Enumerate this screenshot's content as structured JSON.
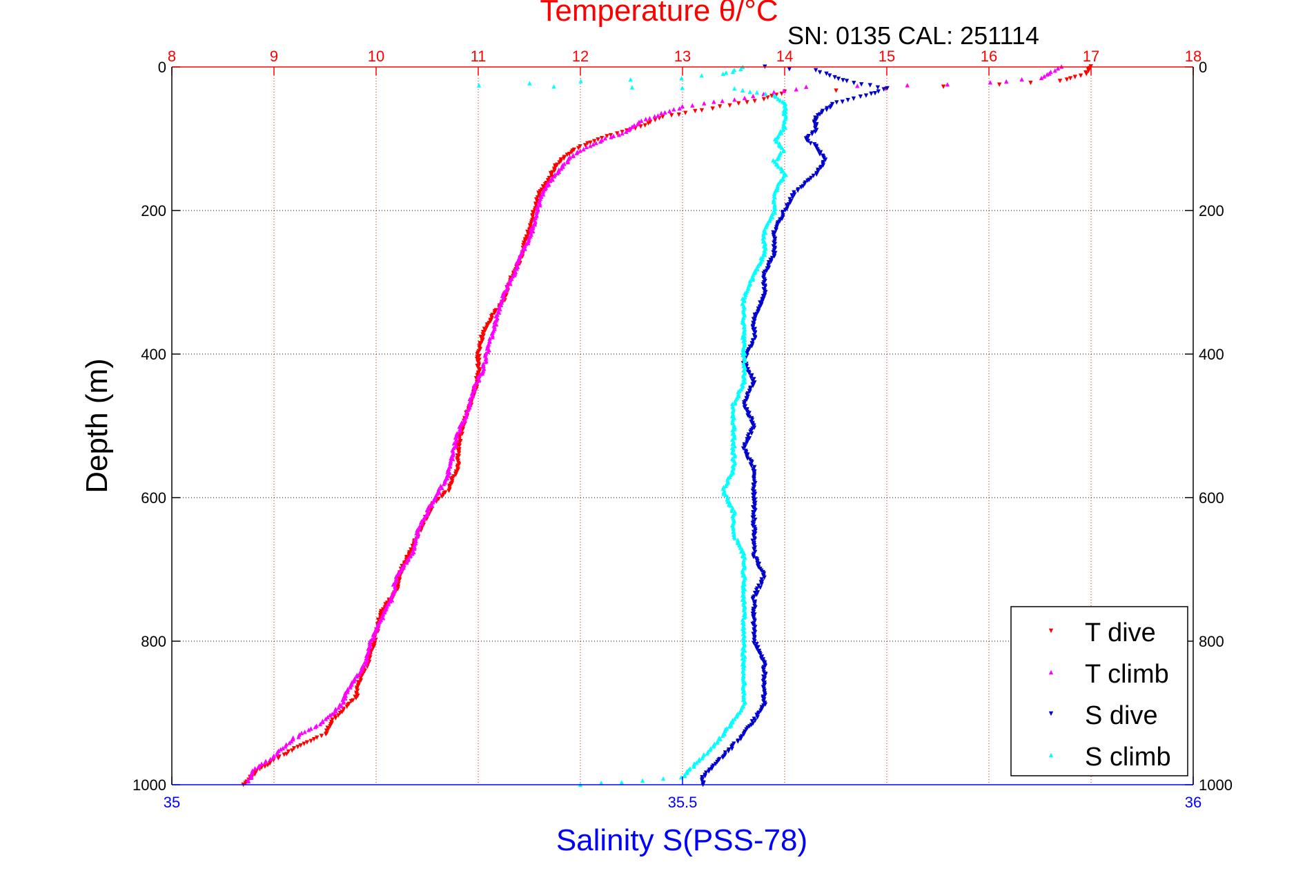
{
  "chart_data": {
    "type": "scatter",
    "title": "Temperature θ/°C",
    "annotation": "SN: 0135  CAL: 251114",
    "xlabel_top": "Temperature θ/°C",
    "xlabel_bottom": "Salinity S(PSS-78)",
    "ylabel": "Depth (m)",
    "x_top": {
      "lim": [
        8,
        18
      ],
      "ticks": [
        "8",
        "9",
        "10",
        "11",
        "12",
        "13",
        "14",
        "15",
        "16",
        "17",
        "18"
      ],
      "color": "#ff0000"
    },
    "x_bottom": {
      "lim": [
        35,
        36
      ],
      "ticks": [
        "35",
        "35.5",
        "36"
      ],
      "color": "#0000ff"
    },
    "y": {
      "lim": [
        0,
        1000
      ],
      "reversed": true,
      "ticks": [
        "0",
        "200",
        "400",
        "600",
        "800",
        "1000"
      ]
    },
    "grid": true,
    "legend_position": "bottom-right",
    "series": [
      {
        "name": "T dive",
        "axis": "temperature",
        "color": "#ff0000",
        "marker": "triangle-down",
        "points": [
          [
            17.0,
            0
          ],
          [
            16.95,
            10
          ],
          [
            16.7,
            20
          ],
          [
            16.1,
            25
          ],
          [
            15.0,
            30
          ],
          [
            14.0,
            35
          ],
          [
            13.8,
            45
          ],
          [
            13.2,
            60
          ],
          [
            12.8,
            70
          ],
          [
            12.55,
            85
          ],
          [
            12.3,
            95
          ],
          [
            12.1,
            105
          ],
          [
            11.95,
            115
          ],
          [
            11.85,
            125
          ],
          [
            11.75,
            140
          ],
          [
            11.7,
            155
          ],
          [
            11.6,
            175
          ],
          [
            11.55,
            200
          ],
          [
            11.5,
            225
          ],
          [
            11.45,
            250
          ],
          [
            11.4,
            275
          ],
          [
            11.3,
            300
          ],
          [
            11.25,
            325
          ],
          [
            11.15,
            345
          ],
          [
            11.05,
            370
          ],
          [
            11.0,
            400
          ],
          [
            11.0,
            430
          ],
          [
            10.95,
            460
          ],
          [
            10.85,
            500
          ],
          [
            10.8,
            530
          ],
          [
            10.8,
            560
          ],
          [
            10.7,
            590
          ],
          [
            10.55,
            610
          ],
          [
            10.45,
            640
          ],
          [
            10.35,
            670
          ],
          [
            10.25,
            700
          ],
          [
            10.2,
            730
          ],
          [
            10.05,
            760
          ],
          [
            10.0,
            790
          ],
          [
            9.95,
            820
          ],
          [
            9.85,
            850
          ],
          [
            9.8,
            880
          ],
          [
            9.6,
            905
          ],
          [
            9.5,
            930
          ],
          [
            9.2,
            950
          ],
          [
            8.95,
            970
          ],
          [
            8.8,
            985
          ],
          [
            8.7,
            1000
          ]
        ]
      },
      {
        "name": "T climb",
        "axis": "temperature",
        "color": "#ff00ff",
        "marker": "triangle-up",
        "points": [
          [
            16.7,
            0
          ],
          [
            16.5,
            15
          ],
          [
            16.0,
            22
          ],
          [
            15.2,
            25
          ],
          [
            14.2,
            28
          ],
          [
            13.7,
            40
          ],
          [
            13.5,
            45
          ],
          [
            13.0,
            55
          ],
          [
            12.8,
            65
          ],
          [
            12.6,
            75
          ],
          [
            12.45,
            90
          ],
          [
            12.25,
            100
          ],
          [
            12.1,
            110
          ],
          [
            11.95,
            120
          ],
          [
            11.85,
            135
          ],
          [
            11.75,
            150
          ],
          [
            11.65,
            170
          ],
          [
            11.6,
            190
          ],
          [
            11.55,
            215
          ],
          [
            11.5,
            240
          ],
          [
            11.4,
            265
          ],
          [
            11.35,
            290
          ],
          [
            11.25,
            315
          ],
          [
            11.2,
            340
          ],
          [
            11.15,
            365
          ],
          [
            11.1,
            390
          ],
          [
            11.05,
            420
          ],
          [
            10.95,
            450
          ],
          [
            10.9,
            480
          ],
          [
            10.8,
            510
          ],
          [
            10.75,
            540
          ],
          [
            10.7,
            570
          ],
          [
            10.6,
            595
          ],
          [
            10.5,
            620
          ],
          [
            10.4,
            650
          ],
          [
            10.35,
            680
          ],
          [
            10.2,
            710
          ],
          [
            10.15,
            740
          ],
          [
            10.05,
            770
          ],
          [
            9.95,
            800
          ],
          [
            9.9,
            830
          ],
          [
            9.75,
            860
          ],
          [
            9.65,
            890
          ],
          [
            9.45,
            915
          ],
          [
            9.2,
            935
          ],
          [
            9.0,
            960
          ],
          [
            8.8,
            980
          ],
          [
            8.75,
            995
          ]
        ]
      },
      {
        "name": "S dive",
        "axis": "salinity",
        "color": "#0000cc",
        "marker": "triangle-down",
        "points": [
          [
            35.58,
            0
          ],
          [
            35.63,
            5
          ],
          [
            35.64,
            10
          ],
          [
            35.66,
            20
          ],
          [
            35.7,
            30
          ],
          [
            35.68,
            40
          ],
          [
            35.65,
            50
          ],
          [
            35.64,
            60
          ],
          [
            35.63,
            70
          ],
          [
            35.63,
            80
          ],
          [
            35.63,
            90
          ],
          [
            35.62,
            100
          ],
          [
            35.63,
            110
          ],
          [
            35.64,
            130
          ],
          [
            35.63,
            150
          ],
          [
            35.61,
            175
          ],
          [
            35.6,
            200
          ],
          [
            35.59,
            230
          ],
          [
            35.59,
            260
          ],
          [
            35.58,
            290
          ],
          [
            35.58,
            320
          ],
          [
            35.57,
            350
          ],
          [
            35.57,
            380
          ],
          [
            35.56,
            410
          ],
          [
            35.57,
            440
          ],
          [
            35.56,
            470
          ],
          [
            35.57,
            500
          ],
          [
            35.56,
            530
          ],
          [
            35.57,
            560
          ],
          [
            35.57,
            590
          ],
          [
            35.57,
            620
          ],
          [
            35.57,
            650
          ],
          [
            35.57,
            680
          ],
          [
            35.58,
            710
          ],
          [
            35.57,
            740
          ],
          [
            35.57,
            770
          ],
          [
            35.57,
            800
          ],
          [
            35.58,
            830
          ],
          [
            35.58,
            860
          ],
          [
            35.58,
            890
          ],
          [
            35.57,
            910
          ],
          [
            35.56,
            930
          ],
          [
            35.55,
            945
          ],
          [
            35.54,
            960
          ],
          [
            35.53,
            975
          ],
          [
            35.52,
            990
          ],
          [
            35.52,
            1000
          ]
        ]
      },
      {
        "name": "S climb",
        "axis": "salinity",
        "color": "#00ffff",
        "marker": "triangle-up",
        "points": [
          [
            35.56,
            0
          ],
          [
            35.54,
            10
          ],
          [
            35.5,
            15
          ],
          [
            35.4,
            20
          ],
          [
            35.3,
            25
          ],
          [
            35.45,
            28
          ],
          [
            35.55,
            30
          ],
          [
            35.59,
            40
          ],
          [
            35.6,
            50
          ],
          [
            35.6,
            60
          ],
          [
            35.6,
            70
          ],
          [
            35.6,
            85
          ],
          [
            35.59,
            100
          ],
          [
            35.6,
            115
          ],
          [
            35.59,
            130
          ],
          [
            35.6,
            150
          ],
          [
            35.59,
            175
          ],
          [
            35.59,
            200
          ],
          [
            35.58,
            230
          ],
          [
            35.58,
            260
          ],
          [
            35.57,
            290
          ],
          [
            35.56,
            320
          ],
          [
            35.56,
            350
          ],
          [
            35.56,
            380
          ],
          [
            35.56,
            410
          ],
          [
            35.56,
            440
          ],
          [
            35.55,
            470
          ],
          [
            35.55,
            500
          ],
          [
            35.55,
            530
          ],
          [
            35.55,
            560
          ],
          [
            35.54,
            590
          ],
          [
            35.55,
            620
          ],
          [
            35.55,
            650
          ],
          [
            35.56,
            680
          ],
          [
            35.56,
            710
          ],
          [
            35.56,
            740
          ],
          [
            35.56,
            770
          ],
          [
            35.56,
            800
          ],
          [
            35.56,
            830
          ],
          [
            35.56,
            860
          ],
          [
            35.56,
            890
          ],
          [
            35.55,
            910
          ],
          [
            35.54,
            930
          ],
          [
            35.53,
            945
          ],
          [
            35.52,
            960
          ],
          [
            35.51,
            975
          ],
          [
            35.5,
            990
          ],
          [
            35.4,
            1000
          ]
        ]
      }
    ]
  }
}
